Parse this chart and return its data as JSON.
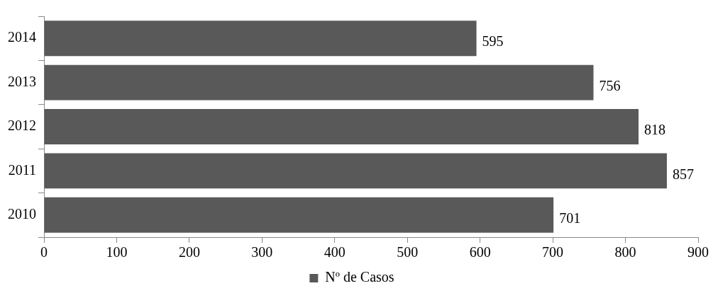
{
  "chart_data": {
    "type": "bar",
    "orientation": "horizontal",
    "categories": [
      "2014",
      "2013",
      "2012",
      "2011",
      "2010"
    ],
    "series": [
      {
        "name": "Nº de Casos",
        "color": "#595959",
        "values": [
          595,
          756,
          818,
          857,
          701
        ]
      }
    ],
    "xlim": [
      0,
      900
    ],
    "xticks": [
      0,
      100,
      200,
      300,
      400,
      500,
      600,
      700,
      800,
      900
    ],
    "grid": false,
    "legend": "bottom",
    "data_labels": true
  }
}
